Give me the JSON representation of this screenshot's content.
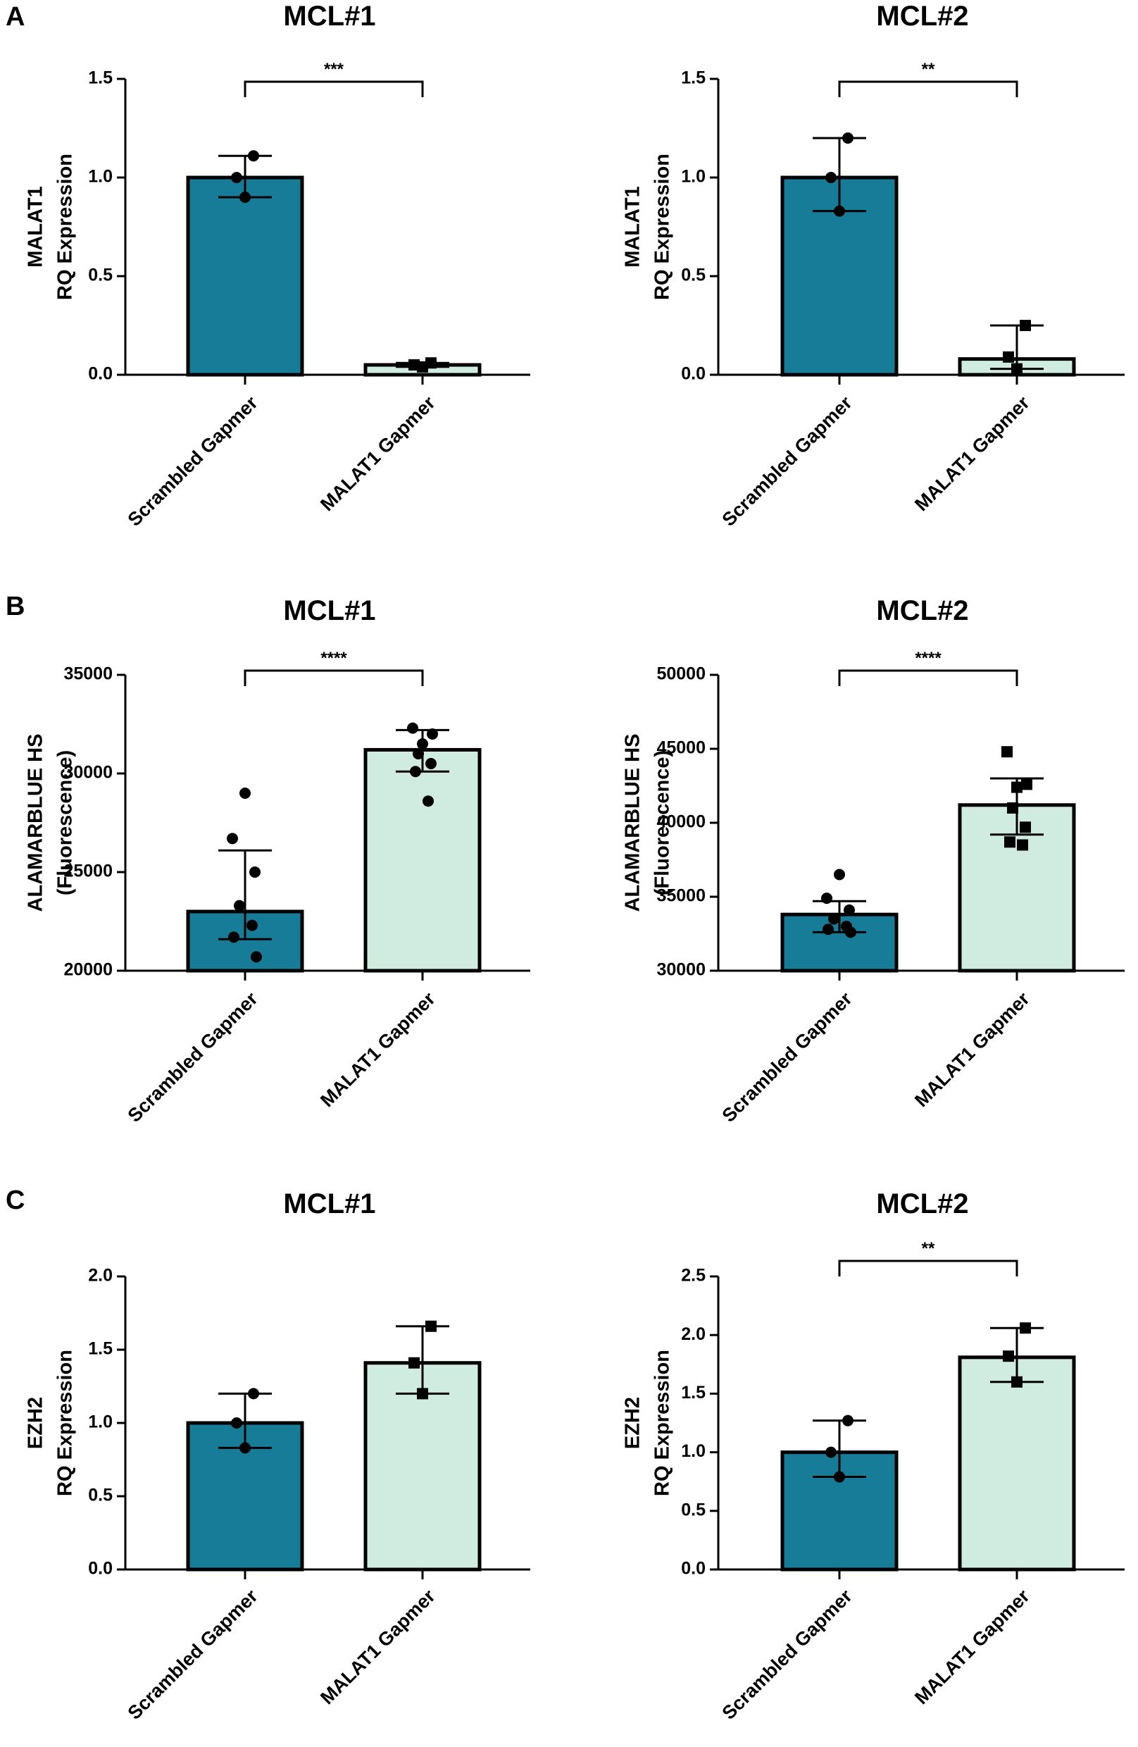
{
  "panel_letters": [
    "A",
    "B",
    "C"
  ],
  "colors": {
    "scrambled": "#177c98",
    "malat1": "#d0ebe0",
    "outline": "#000000"
  },
  "chart_data": [
    {
      "type": "bar",
      "panel": "A",
      "title": "MCL#1",
      "ylabel": [
        "MALAT1",
        "RQ Expression"
      ],
      "categories": [
        "Scrambled Gapmer",
        "MALAT1 Gapmer"
      ],
      "values": [
        1.0,
        0.05
      ],
      "errors": [
        [
          0.9,
          1.11
        ],
        [
          0.04,
          0.06
        ]
      ],
      "points": [
        [
          0.9,
          1.0,
          1.11
        ],
        [
          0.04,
          0.05,
          0.06
        ]
      ],
      "markers": [
        "circle",
        "square"
      ],
      "ylim": [
        0,
        1.5
      ],
      "yticks": [
        0.0,
        0.5,
        1.0,
        1.5
      ],
      "ytick_labels": [
        "0.0",
        "0.5",
        "1.0",
        "1.5"
      ],
      "significance": "***"
    },
    {
      "type": "bar",
      "panel": "A",
      "title": "MCL#2",
      "ylabel": [
        "MALAT1",
        "RQ Expression"
      ],
      "categories": [
        "Scrambled Gapmer",
        "MALAT1 Gapmer"
      ],
      "values": [
        1.0,
        0.08
      ],
      "errors": [
        [
          0.83,
          1.2
        ],
        [
          0.03,
          0.25
        ]
      ],
      "points": [
        [
          0.83,
          1.0,
          1.2
        ],
        [
          0.03,
          0.09,
          0.25
        ]
      ],
      "markers": [
        "circle",
        "square"
      ],
      "ylim": [
        0,
        1.5
      ],
      "yticks": [
        0.0,
        0.5,
        1.0,
        1.5
      ],
      "ytick_labels": [
        "0.0",
        "0.5",
        "1.0",
        "1.5"
      ],
      "significance": "**"
    },
    {
      "type": "bar",
      "panel": "B",
      "title": "MCL#1",
      "ylabel": [
        "ALAMARBLUE HS",
        "(Fluorescence)"
      ],
      "categories": [
        "Scrambled Gapmer",
        "MALAT1 Gapmer"
      ],
      "values": [
        23000,
        31200
      ],
      "errors": [
        [
          21600,
          26100
        ],
        [
          30100,
          32200
        ]
      ],
      "points": [
        [
          29000,
          26700,
          25000,
          23300,
          22300,
          21700,
          20700
        ],
        [
          32300,
          32000,
          31500,
          31000,
          30500,
          30100,
          28600
        ]
      ],
      "markers": [
        "circle",
        "circle"
      ],
      "ylim": [
        20000,
        35000
      ],
      "yticks": [
        20000,
        25000,
        30000,
        35000
      ],
      "ytick_labels": [
        "20000",
        "25000",
        "30000",
        "35000"
      ],
      "significance": "****"
    },
    {
      "type": "bar",
      "panel": "B",
      "title": "MCL#2",
      "ylabel": [
        "ALAMARBLUE HS",
        "(Fluorescence)"
      ],
      "categories": [
        "Scrambled Gapmer",
        "MALAT1 Gapmer"
      ],
      "values": [
        33800,
        41200
      ],
      "errors": [
        [
          32600,
          34700
        ],
        [
          39200,
          43000
        ]
      ],
      "points": [
        [
          36500,
          34900,
          34100,
          33500,
          33000,
          32800,
          32600
        ],
        [
          44800,
          42600,
          42400,
          41000,
          39700,
          38700,
          38500
        ]
      ],
      "markers": [
        "circle",
        "square"
      ],
      "ylim": [
        30000,
        50000
      ],
      "yticks": [
        30000,
        35000,
        40000,
        45000,
        50000
      ],
      "ytick_labels": [
        "30000",
        "35000",
        "40000",
        "45000",
        "50000"
      ],
      "significance": "****"
    },
    {
      "type": "bar",
      "panel": "C",
      "title": "MCL#1",
      "ylabel": [
        "EZH2",
        "RQ Expression"
      ],
      "categories": [
        "Scrambled Gapmer",
        "MALAT1 Gapmer"
      ],
      "values": [
        1.0,
        1.41
      ],
      "errors": [
        [
          0.83,
          1.2
        ],
        [
          1.2,
          1.66
        ]
      ],
      "points": [
        [
          0.83,
          1.0,
          1.2
        ],
        [
          1.2,
          1.41,
          1.66
        ]
      ],
      "markers": [
        "circle",
        "square"
      ],
      "ylim": [
        0,
        2.0
      ],
      "yticks": [
        0.0,
        0.5,
        1.0,
        1.5,
        2.0
      ],
      "ytick_labels": [
        "0.0",
        "0.5",
        "1.0",
        "1.5",
        "2.0"
      ],
      "significance": ""
    },
    {
      "type": "bar",
      "panel": "C",
      "title": "MCL#2",
      "ylabel": [
        "EZH2",
        "RQ Expression"
      ],
      "categories": [
        "Scrambled Gapmer",
        "MALAT1 Gapmer"
      ],
      "values": [
        1.0,
        1.81
      ],
      "errors": [
        [
          0.79,
          1.27
        ],
        [
          1.6,
          2.06
        ]
      ],
      "points": [
        [
          0.79,
          1.0,
          1.27
        ],
        [
          1.6,
          1.82,
          2.06
        ]
      ],
      "markers": [
        "circle",
        "square"
      ],
      "ylim": [
        0,
        2.5
      ],
      "yticks": [
        0.0,
        0.5,
        1.0,
        1.5,
        2.0,
        2.5
      ],
      "ytick_labels": [
        "0.0",
        "0.5",
        "1.0",
        "1.5",
        "2.0",
        "2.5"
      ],
      "significance": "**"
    }
  ]
}
